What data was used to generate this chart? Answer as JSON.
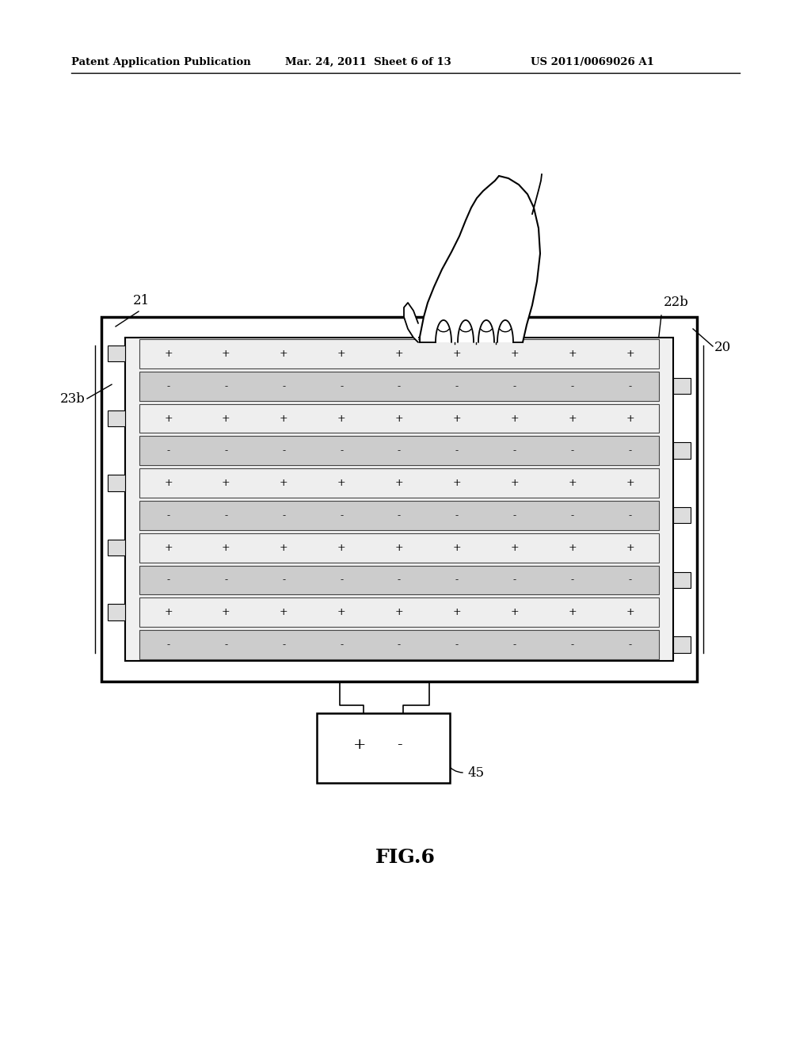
{
  "bg_color": "#ffffff",
  "header_left": "Patent Application Publication",
  "header_mid": "Mar. 24, 2011  Sheet 6 of 13",
  "header_right": "US 2011/0069026 A1",
  "fig_label": "FIG.6",
  "label_20": "20",
  "label_21": "21",
  "label_22b": "22b",
  "label_23b": "23b",
  "label_45": "45",
  "strip_count": 10,
  "n_signs": 9,
  "plus_color": "#eeeeee",
  "minus_color": "#cccccc",
  "tab_color": "#dddddd"
}
